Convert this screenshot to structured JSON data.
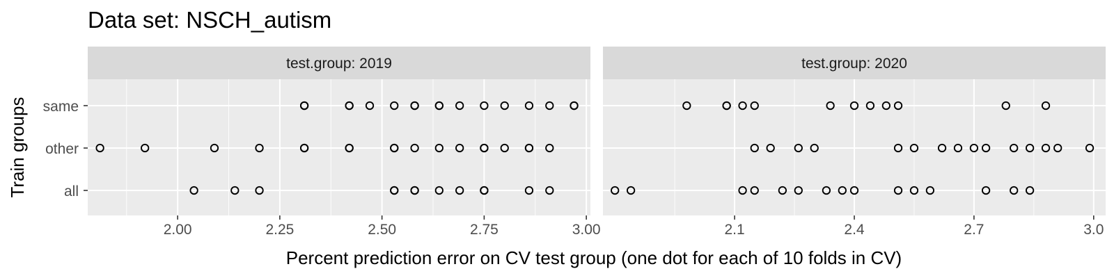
{
  "chart_data": {
    "type": "scatter",
    "title": "Data set: NSCH_autism",
    "xlabel": "Percent prediction error on CV test group (one dot for each of 10 folds in CV)",
    "ylabel": "Train groups",
    "y_categories": [
      "all",
      "other",
      "same"
    ],
    "grid": true,
    "legend": "none",
    "colors": {
      "panel_bg": "#ebebeb",
      "strip_bg": "#d9d9d9",
      "grid": "#ffffff",
      "point_stroke": "#000000"
    },
    "facets": [
      {
        "strip_label": "test.group: 2019",
        "xlim": [
          1.78,
          3.01
        ],
        "xticks": [
          2.0,
          2.25,
          2.5,
          2.75,
          3.0
        ],
        "xtick_labels": [
          "2.00",
          "2.25",
          "2.50",
          "2.75",
          "3.00"
        ],
        "series": [
          {
            "group": "same",
            "x": [
              2.31,
              2.31,
              2.42,
              2.42,
              2.47,
              2.53,
              2.58,
              2.58,
              2.64,
              2.64,
              2.69,
              2.75,
              2.8,
              2.86,
              2.91,
              2.97,
              2.97
            ]
          },
          {
            "group": "other",
            "x": [
              1.81,
              1.92,
              2.09,
              2.2,
              2.31,
              2.31,
              2.42,
              2.42,
              2.53,
              2.53,
              2.58,
              2.64,
              2.69,
              2.75,
              2.75,
              2.8,
              2.86,
              2.86,
              2.91
            ]
          },
          {
            "group": "all",
            "x": [
              2.04,
              2.14,
              2.2,
              2.53,
              2.53,
              2.58,
              2.58,
              2.64,
              2.69,
              2.75,
              2.75,
              2.86,
              2.91
            ]
          }
        ]
      },
      {
        "strip_label": "test.group: 2020",
        "xlim": [
          1.77,
          3.03
        ],
        "xticks": [
          2.1,
          2.4,
          2.7,
          3.0
        ],
        "xtick_labels": [
          "2.1",
          "2.4",
          "2.7",
          "3.0"
        ],
        "series": [
          {
            "group": "same",
            "x": [
              1.98,
              2.08,
              2.08,
              2.12,
              2.15,
              2.34,
              2.4,
              2.44,
              2.48,
              2.51,
              2.78,
              2.88
            ]
          },
          {
            "group": "other",
            "x": [
              2.15,
              2.19,
              2.26,
              2.3,
              2.51,
              2.55,
              2.62,
              2.66,
              2.7,
              2.73,
              2.8,
              2.84,
              2.88,
              2.91,
              2.99
            ]
          },
          {
            "group": "all",
            "x": [
              1.8,
              1.84,
              2.12,
              2.15,
              2.22,
              2.26,
              2.33,
              2.37,
              2.4,
              2.51,
              2.55,
              2.59,
              2.73,
              2.8,
              2.84
            ]
          }
        ]
      }
    ]
  }
}
